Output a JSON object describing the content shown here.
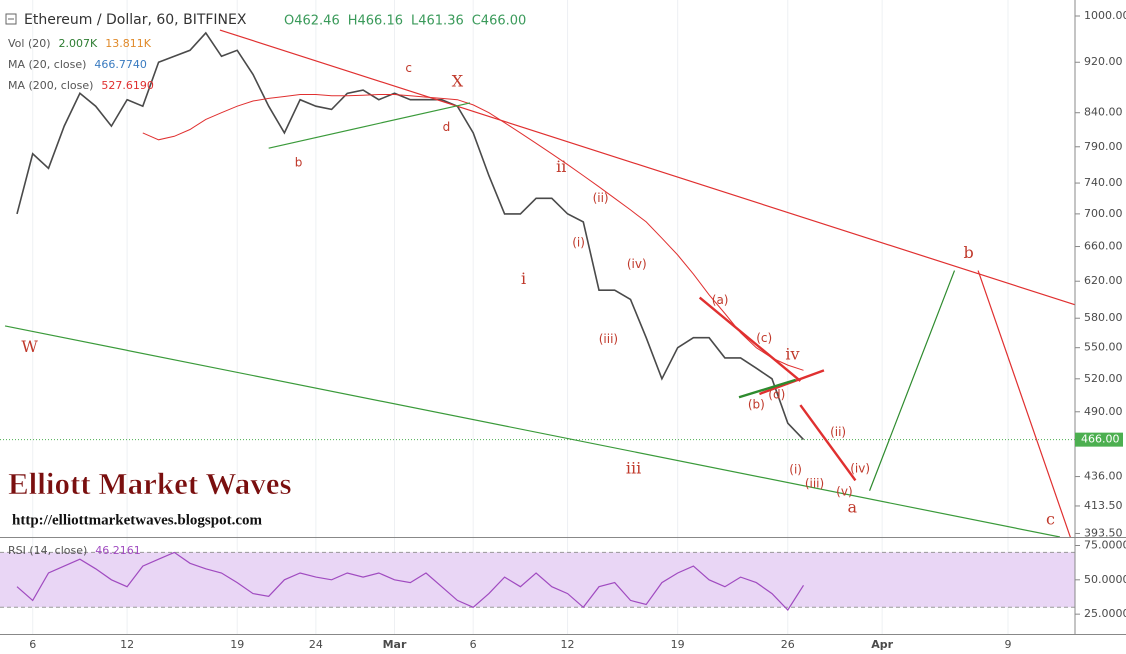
{
  "chart_data": [
    {
      "type": "line",
      "header_values": [
        "O462.46",
        "H466.16",
        "L461.36",
        "C466.00"
      ],
      "indicators": [
        {
          "label": "Vol (20)",
          "values": [
            "2.007K",
            "13.811K"
          ]
        },
        {
          "label": "MA (20, close)",
          "values": [
            "466.7740"
          ]
        }
      ],
      "categories": [
        null,
        "6",
        null,
        null,
        null,
        null,
        null,
        "12",
        null,
        null,
        null,
        null,
        null,
        null,
        "19",
        null,
        null,
        null,
        null,
        "24",
        null,
        null,
        null,
        null,
        "Mar",
        null,
        null,
        null,
        null,
        "6",
        null,
        null,
        null,
        null,
        null,
        "12",
        null,
        null,
        null,
        null,
        null,
        null,
        "19",
        null,
        null,
        null,
        null,
        null,
        null,
        "26",
        null,
        null,
        null,
        null,
        null,
        "Apr",
        null,
        null,
        null,
        null,
        null,
        null,
        null,
        "9",
        null,
        null
      ],
      "series": [
        {
          "name": "Ethereum / Dollar, 60, BITFINEX",
          "color": "#4a4a4a",
          "values": [
            700,
            780,
            760,
            820,
            870,
            850,
            820,
            860,
            850,
            920,
            930,
            940,
            970,
            930,
            940,
            900,
            850,
            810,
            860,
            850,
            845,
            870,
            875,
            860,
            870,
            860,
            860,
            860,
            850,
            810,
            750,
            700,
            700,
            720,
            720,
            700,
            690,
            610,
            610,
            600,
            560,
            520,
            550,
            560,
            560,
            540,
            540,
            530,
            520,
            480,
            466,
            null,
            null,
            null,
            null,
            null,
            null,
            null,
            null,
            null,
            null,
            null,
            null,
            null,
            null,
            null
          ]
        },
        {
          "name": "MA (200, close)",
          "last_label": "527.6190",
          "color": "#e03030",
          "values": [
            null,
            null,
            null,
            null,
            null,
            null,
            null,
            null,
            810,
            800,
            805,
            815,
            830,
            840,
            850,
            858,
            862,
            865,
            868,
            868,
            866,
            866,
            867,
            868,
            868,
            866,
            864,
            862,
            860,
            852,
            840,
            825,
            810,
            795,
            780,
            765,
            750,
            735,
            720,
            705,
            690,
            670,
            650,
            628,
            605,
            585,
            565,
            550,
            540,
            533,
            528,
            null,
            null,
            null,
            null,
            null,
            null,
            null,
            null,
            null,
            null,
            null,
            null,
            null,
            null,
            null
          ]
        }
      ],
      "log_scale": true,
      "ylim": [
        391,
        1020
      ],
      "yticks": [
        {
          "value": 1000,
          "label": "1000.00"
        },
        {
          "value": 920,
          "label": "920.00"
        },
        {
          "value": 840,
          "label": "840.00"
        },
        {
          "value": 790,
          "label": "790.00"
        },
        {
          "value": 740,
          "label": "740.00"
        },
        {
          "value": 700,
          "label": "700.00"
        },
        {
          "value": 660,
          "label": "660.00"
        },
        {
          "value": 620,
          "label": "620.00"
        },
        {
          "value": 580,
          "label": "580.00"
        },
        {
          "value": 550,
          "label": "550.00"
        },
        {
          "value": 520,
          "label": "520.00"
        },
        {
          "value": 490,
          "label": "490.00"
        },
        {
          "value": 436,
          "label": "436.00"
        },
        {
          "value": 413.5,
          "label": "413.50"
        },
        {
          "value": 393.5,
          "label": "393.50"
        }
      ],
      "last_price": {
        "value": 466,
        "label": "466.00",
        "color": "#4caf50"
      },
      "grid": true,
      "annotations": [
        {
          "text": "W",
          "x": 0.8,
          "y": 550,
          "size": "large"
        },
        {
          "text": "b",
          "x": 17.9,
          "y": 767,
          "size": "small"
        },
        {
          "text": "c",
          "x": 24.9,
          "y": 910,
          "size": "small"
        },
        {
          "text": "X",
          "x": 28,
          "y": 888,
          "size": "large"
        },
        {
          "text": "d",
          "x": 27.3,
          "y": 818,
          "size": "small"
        },
        {
          "text": "ii",
          "x": 34.6,
          "y": 761,
          "size": "large"
        },
        {
          "text": "i",
          "x": 32.2,
          "y": 622,
          "size": "large"
        },
        {
          "text": "(ii)",
          "x": 37.1,
          "y": 720,
          "size": "small"
        },
        {
          "text": "(i)",
          "x": 35.7,
          "y": 664,
          "size": "small"
        },
        {
          "text": "(iv)",
          "x": 39.4,
          "y": 639,
          "size": "small"
        },
        {
          "text": "(iii)",
          "x": 37.6,
          "y": 558,
          "size": "small"
        },
        {
          "text": "iii",
          "x": 39.2,
          "y": 442,
          "size": "large"
        },
        {
          "text": "(a)",
          "x": 44.7,
          "y": 599,
          "size": "small"
        },
        {
          "text": "(c)",
          "x": 47.5,
          "y": 559,
          "size": "small"
        },
        {
          "text": "iv",
          "x": 49.3,
          "y": 543,
          "size": "large"
        },
        {
          "text": "(d)",
          "x": 48.3,
          "y": 505,
          "size": "small"
        },
        {
          "text": "(b)",
          "x": 47,
          "y": 496,
          "size": "small"
        },
        {
          "text": "(ii)",
          "x": 52.2,
          "y": 472,
          "size": "small"
        },
        {
          "text": "(i)",
          "x": 49.5,
          "y": 441,
          "size": "small"
        },
        {
          "text": "(iv)",
          "x": 53.6,
          "y": 442,
          "size": "small"
        },
        {
          "text": "(iii)",
          "x": 50.7,
          "y": 430,
          "size": "small"
        },
        {
          "text": "(v)",
          "x": 52.6,
          "y": 424,
          "size": "small"
        },
        {
          "text": "a",
          "x": 53.1,
          "y": 412,
          "size": "large"
        },
        {
          "text": "b",
          "x": 60.5,
          "y": 652,
          "size": "large"
        },
        {
          "text": "c",
          "x": 65.7,
          "y": 403,
          "size": "large"
        }
      ],
      "annotation_color": "#c0392b",
      "trendlines": [
        {
          "from": [
            12.9,
            975
          ],
          "to": [
            67.3,
            594
          ],
          "color": "#e03030",
          "weight": "thin"
        },
        {
          "from": [
            -0.76,
            572
          ],
          "to": [
            66.3,
            391
          ],
          "color": "#3a9a3a",
          "weight": "thin"
        },
        {
          "from": [
            16,
            788
          ],
          "to": [
            28.8,
            855
          ],
          "color": "#3a9a3a",
          "weight": "thin"
        },
        {
          "from": [
            54.2,
            425
          ],
          "to": [
            59.6,
            632
          ],
          "color": "#2e8b2e",
          "weight": "thin"
        },
        {
          "from": [
            61.1,
            632
          ],
          "to": [
            67.7,
            368
          ],
          "color": "#e03030",
          "weight": "thin"
        },
        {
          "from": [
            43.4,
            602
          ],
          "to": [
            49.8,
            518
          ],
          "color": "#e03030",
          "weight": "heavy"
        },
        {
          "from": [
            49.8,
            496
          ],
          "to": [
            53.3,
            433
          ],
          "color": "#e03030",
          "weight": "heavy"
        },
        {
          "from": [
            47.2,
            506
          ],
          "to": [
            51.3,
            528
          ],
          "color": "#e03030",
          "weight": "heavy"
        },
        {
          "from": [
            45.9,
            503
          ],
          "to": [
            49.5,
            519
          ],
          "color": "#2e8b2e",
          "weight": "heavy"
        }
      ]
    },
    {
      "type": "line",
      "title": "RSI (14, close)",
      "last_label": "46.2161",
      "color": "#a04bc0",
      "values": [
        45,
        35,
        55,
        60,
        65,
        58,
        50,
        45,
        60,
        65,
        70,
        62,
        58,
        55,
        48,
        40,
        38,
        50,
        55,
        52,
        50,
        55,
        52,
        55,
        50,
        48,
        55,
        45,
        35,
        30,
        40,
        52,
        45,
        55,
        45,
        40,
        30,
        45,
        48,
        35,
        32,
        48,
        55,
        60,
        50,
        45,
        52,
        48,
        40,
        28,
        46,
        null,
        null,
        null,
        null,
        null,
        null,
        null,
        null,
        null,
        null,
        null,
        null,
        null,
        null,
        null
      ],
      "ylim": [
        12,
        79
      ],
      "yticks": [
        {
          "value": 75,
          "label": "75.0000"
        },
        {
          "value": 50,
          "label": "50.0000"
        },
        {
          "value": 25,
          "label": "25.0000"
        }
      ],
      "band": [
        30,
        70
      ],
      "band_color": "#e9d6f5"
    }
  ],
  "watermark": {
    "title": "Elliott Market Waves",
    "url": "http://elliottmarketwaves.blogspot.com"
  }
}
